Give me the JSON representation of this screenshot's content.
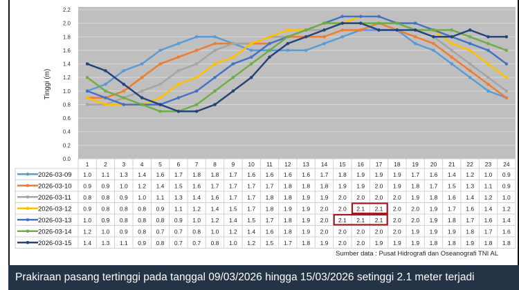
{
  "chart_data": {
    "type": "line",
    "title": "",
    "xlabel": "",
    "ylabel": "Tinggi (m)",
    "ylim": [
      0,
      2.2
    ],
    "yticks": [
      "0.0",
      "0.2",
      "0.4",
      "0.6",
      "0.8",
      "1.0",
      "1.2",
      "1.4",
      "1.6",
      "1.8",
      "2.0",
      "2.2"
    ],
    "categories": [
      "1",
      "2",
      "3",
      "4",
      "5",
      "6",
      "7",
      "8",
      "9",
      "10",
      "11",
      "12",
      "13",
      "14",
      "15",
      "16",
      "17",
      "18",
      "19",
      "20",
      "21",
      "22",
      "23",
      "24"
    ],
    "grid": true,
    "legend": "data-table-left",
    "series": [
      {
        "name": "2026-03-09",
        "color": "#5b9bd5",
        "values": [
          1.0,
          1.1,
          1.3,
          1.4,
          1.6,
          1.7,
          1.8,
          1.8,
          1.7,
          1.6,
          1.6,
          1.6,
          1.6,
          1.7,
          1.8,
          1.9,
          1.9,
          1.9,
          1.7,
          1.6,
          1.4,
          1.2,
          1.0,
          0.9
        ]
      },
      {
        "name": "2026-03-10",
        "color": "#ed7d31",
        "values": [
          0.9,
          0.9,
          1.0,
          1.2,
          1.4,
          1.5,
          1.6,
          1.7,
          1.7,
          1.7,
          1.7,
          1.8,
          1.8,
          1.8,
          1.9,
          1.9,
          2.0,
          1.9,
          1.8,
          1.7,
          1.5,
          1.3,
          1.1,
          0.9
        ]
      },
      {
        "name": "2026-03-11",
        "color": "#a5a5a5",
        "values": [
          0.8,
          0.8,
          0.9,
          1.0,
          1.1,
          1.3,
          1.4,
          1.6,
          1.7,
          1.7,
          1.8,
          1.8,
          1.9,
          1.9,
          2.0,
          2.0,
          2.0,
          2.0,
          1.9,
          1.8,
          1.6,
          1.4,
          1.2,
          1.0
        ]
      },
      {
        "name": "2026-03-12",
        "color": "#ffc000",
        "values": [
          0.9,
          0.8,
          0.8,
          0.8,
          0.9,
          1.1,
          1.2,
          1.4,
          1.5,
          1.7,
          1.8,
          1.9,
          1.9,
          2.0,
          2.0,
          2.1,
          2.1,
          2.0,
          2.0,
          1.9,
          1.7,
          1.6,
          1.4,
          1.2
        ]
      },
      {
        "name": "2026-03-13",
        "color": "#4472c4",
        "values": [
          1.0,
          0.9,
          0.8,
          0.8,
          0.8,
          0.9,
          1.0,
          1.2,
          1.4,
          1.5,
          1.7,
          1.8,
          1.9,
          2.0,
          2.1,
          2.1,
          2.1,
          2.0,
          2.0,
          1.9,
          1.8,
          1.7,
          1.6,
          1.4
        ]
      },
      {
        "name": "2026-03-14",
        "color": "#70ad47",
        "values": [
          1.2,
          1.0,
          0.9,
          0.8,
          0.7,
          0.7,
          0.8,
          1.0,
          1.2,
          1.4,
          1.6,
          1.8,
          1.9,
          2.0,
          2.0,
          2.0,
          2.0,
          2.0,
          1.9,
          1.9,
          1.9,
          1.8,
          1.7,
          1.6
        ]
      },
      {
        "name": "2026-03-15",
        "color": "#264478",
        "values": [
          1.4,
          1.3,
          1.1,
          0.9,
          0.8,
          0.7,
          0.7,
          0.8,
          1.0,
          1.2,
          1.5,
          1.7,
          1.8,
          1.9,
          2.0,
          2.0,
          1.9,
          1.9,
          1.9,
          1.8,
          1.8,
          1.9,
          1.8,
          1.8
        ]
      }
    ],
    "highlights": [
      {
        "series": 3,
        "from": 16,
        "to": 17
      },
      {
        "series": 4,
        "from": 15,
        "to": 17
      }
    ],
    "highlight_color": "#a01c1c"
  },
  "source": "Sumber data : Pusat Hidrografi dan Oseanografi TNI AL",
  "banner": "Prakiraan pasang tertinggi pada tanggal 09/03/2026 hingga 15/03/2026 setinggi 2.1 meter terjadi"
}
